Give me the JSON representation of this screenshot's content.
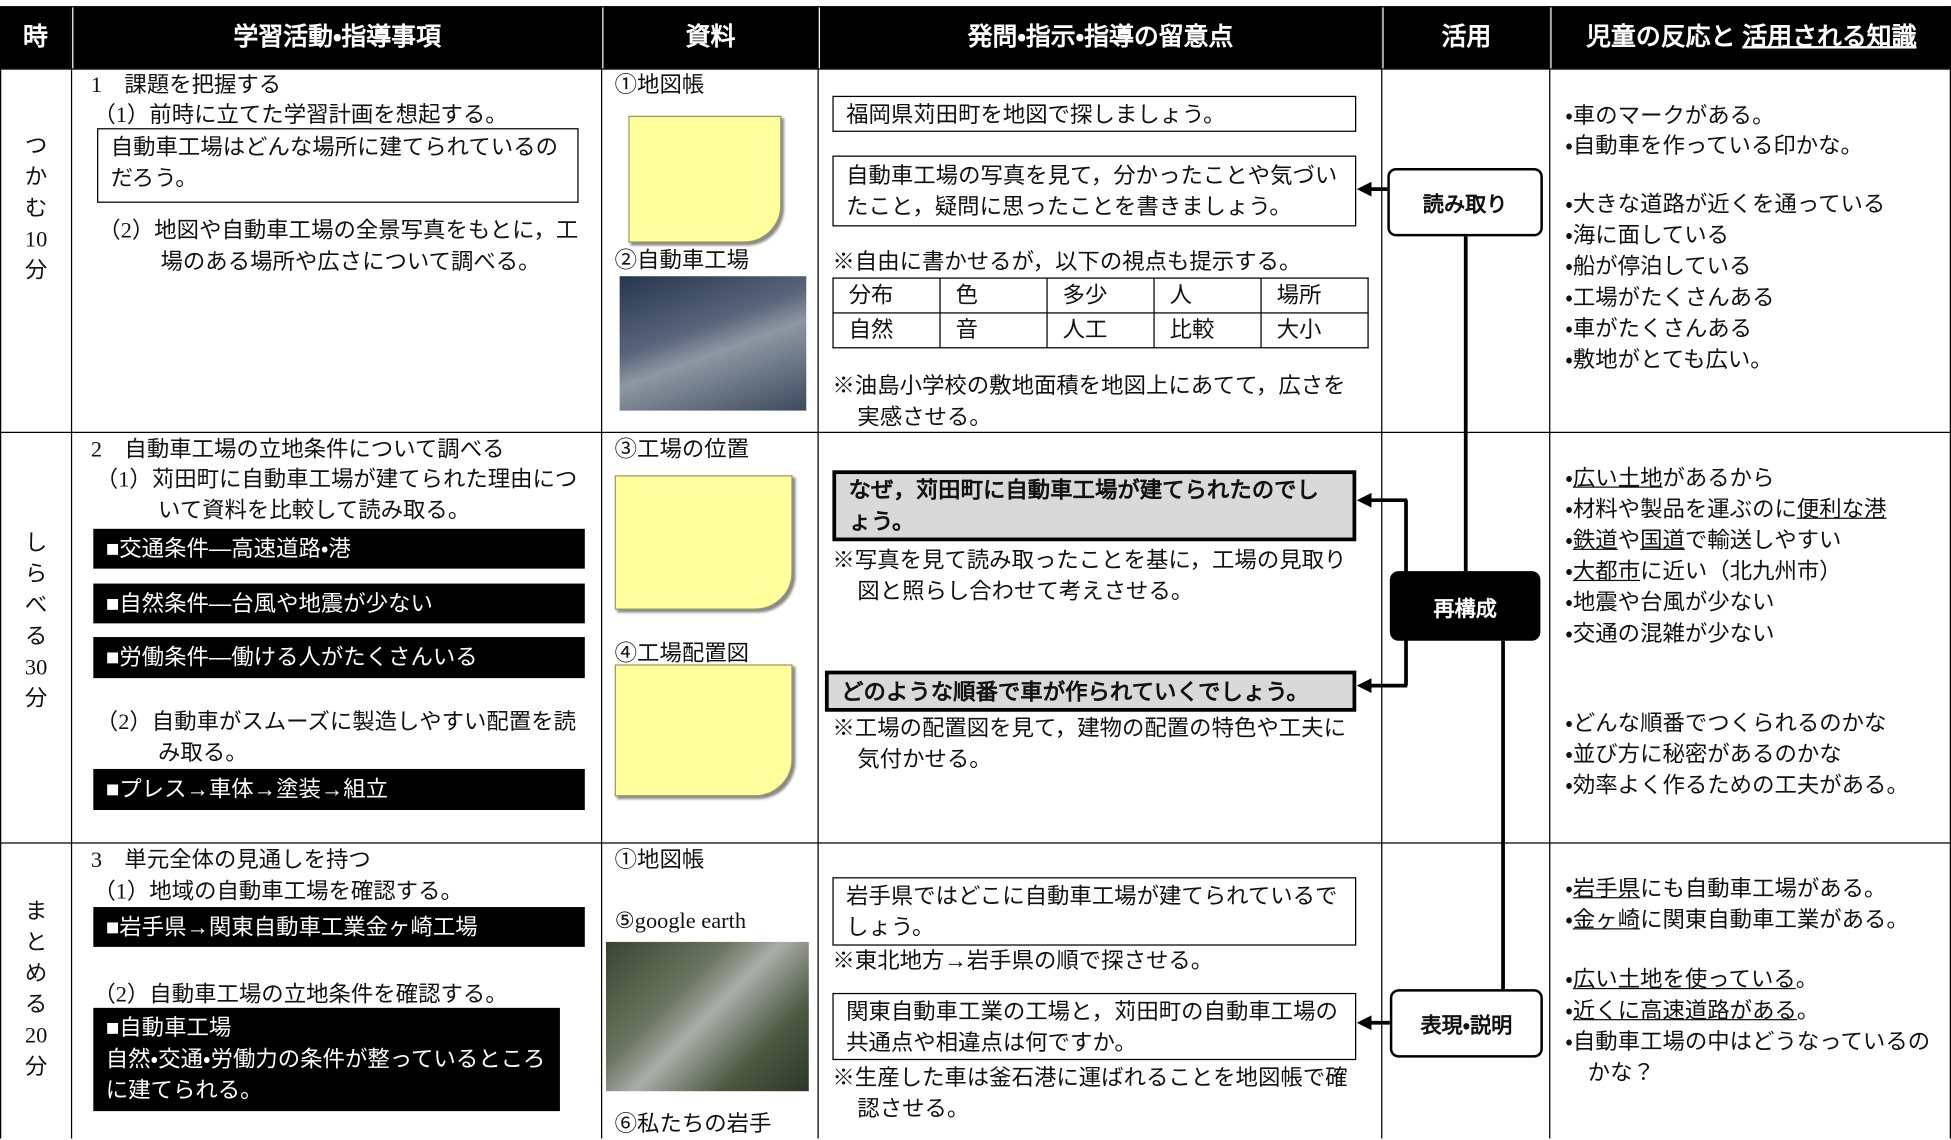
{
  "header": {
    "time": "時",
    "activity": "学習活動・指導事項",
    "materials": "資料",
    "questions": "発問・指示・指導の留意点",
    "usage": "活用",
    "responses": "児童の反応と",
    "responses_underlined": "活用される知識"
  },
  "rows": [
    {
      "time": "つかむ10分",
      "activity": {
        "heading": "1　課題を把握する",
        "steps": [
          "（1）前時に立てた学習計画を想起する。",
          "（2）地図や自動車工場の全景写真をもとに，工場のある場所や広さについて調べる。"
        ],
        "boxes": [
          "自動車工場はどんな場所に建てられているのだろう。"
        ]
      },
      "materials": [
        "①地図帳",
        "②自動車工場"
      ],
      "questions": {
        "prompts": [
          "福岡県苅田町を地図で探しましょう。",
          "自動車工場の写真を見て，分かったことや気づいたこと，疑問に思ったことを書きましょう。"
        ],
        "notes": [
          "※自由に書かせるが，以下の視点も提示する。",
          "※油島小学校の敷地面積を地図上にあてて，広さを実感させる。"
        ],
        "viewpoints": [
          [
            "分布",
            "色",
            "多少",
            "人",
            "場所"
          ],
          [
            "自然",
            "音",
            "人工",
            "比較",
            "大小"
          ]
        ]
      },
      "usage": "読み取り",
      "responses": [
        [
          "・車のマークがある。"
        ],
        [
          "・自動車を作っている印かな。"
        ],
        [
          "・大きな道路が近くを通っている"
        ],
        [
          "・海に面している"
        ],
        [
          "・船が停泊している"
        ],
        [
          "・工場がたくさんある"
        ],
        [
          "・車がたくさんある"
        ],
        [
          "・敷地がとても広い。"
        ]
      ]
    },
    {
      "time": "しらべる30分",
      "activity": {
        "heading": "2　自動車工場の立地条件について調べる",
        "steps": [
          "（1）苅田町に自動車工場が建てられた理由について資料を比較して読み取る。",
          "（2）自動車がスムーズに製造しやすい配置を読み取る。"
        ],
        "boxes": [
          "■交通条件―高速道路・港",
          "■自然条件―台風や地震が少ない",
          "■労働条件―働ける人がたくさんいる",
          "■プレス→車体→塗装→組立"
        ]
      },
      "materials": [
        "③工場の位置",
        "④工場配置図"
      ],
      "questions": {
        "prompts": [
          "なぜ，苅田町に自動車工場が建てられたのでしょう。",
          "どのような順番で車が作られていくでしょう。"
        ],
        "notes": [
          "※写真を見て読み取ったことを基に，工場の見取り図と照らし合わせて考えさせる。",
          "※工場の配置図を見て，建物の配置の特色や工夫に気付かせる。"
        ]
      },
      "usage": "再構成",
      "responses": [
        [
          "・",
          {
            "text": "広い土地",
            "underline": true
          },
          "があるから"
        ],
        [
          "・材料や製品を運ぶのに",
          {
            "text": "便利な港",
            "underline": true
          }
        ],
        [
          "・",
          {
            "text": "鉄道",
            "underline": true
          },
          "や",
          {
            "text": "国道",
            "underline": true
          },
          "で輸送しやすい"
        ],
        [
          "・",
          {
            "text": "大都市",
            "underline": true
          },
          "に近い（北九州市）"
        ],
        [
          "・地震や台風が少ない"
        ],
        [
          "・交通の混雑が少ない"
        ],
        [
          "・どんな順番でつくられるのかな"
        ],
        [
          "・並び方に秘密があるのかな"
        ],
        [
          "・効率よく作るための工夫がある。"
        ]
      ]
    },
    {
      "time": "まとめる20分",
      "activity": {
        "heading": "3　単元全体の見通しを持つ",
        "steps": [
          "（1）地域の自動車工場を確認する。",
          "（2）自動車工場の立地条件を確認する。"
        ],
        "boxes": [
          "■岩手県→関東自動車工業金ヶ崎工場",
          [
            "■自動車工場",
            "自然・交通・労働力の条件が整っているところに建てられる。"
          ]
        ]
      },
      "materials": [
        "①地図帳",
        "⑤google earth",
        "⑥私たちの岩手"
      ],
      "questions": {
        "prompts": [
          "岩手県ではどこに自動車工場が建てられているでしょう。",
          "関東自動車工業の工場と，苅田町の自動車工場の共通点や相違点は何ですか。"
        ],
        "notes": [
          "※東北地方→岩手県の順で探させる。",
          "※生産した車は釜石港に運ばれることを地図帳で確認させる。"
        ]
      },
      "usage": "表現・説明",
      "responses": [
        [
          "・",
          {
            "text": "岩手県",
            "underline": true
          },
          "にも自動車工場がある。"
        ],
        [
          "・",
          {
            "text": "金ヶ崎",
            "underline": true
          },
          "に関東自動車工業がある。"
        ],
        [
          "・",
          {
            "text": "広い土地を使っている",
            "underline": true
          },
          "。"
        ],
        [
          "・",
          {
            "text": "近くに高速道路がある",
            "underline": true
          },
          "。"
        ],
        [
          "・自動車工場の中はどうなっているのかな？"
        ]
      ]
    }
  ]
}
